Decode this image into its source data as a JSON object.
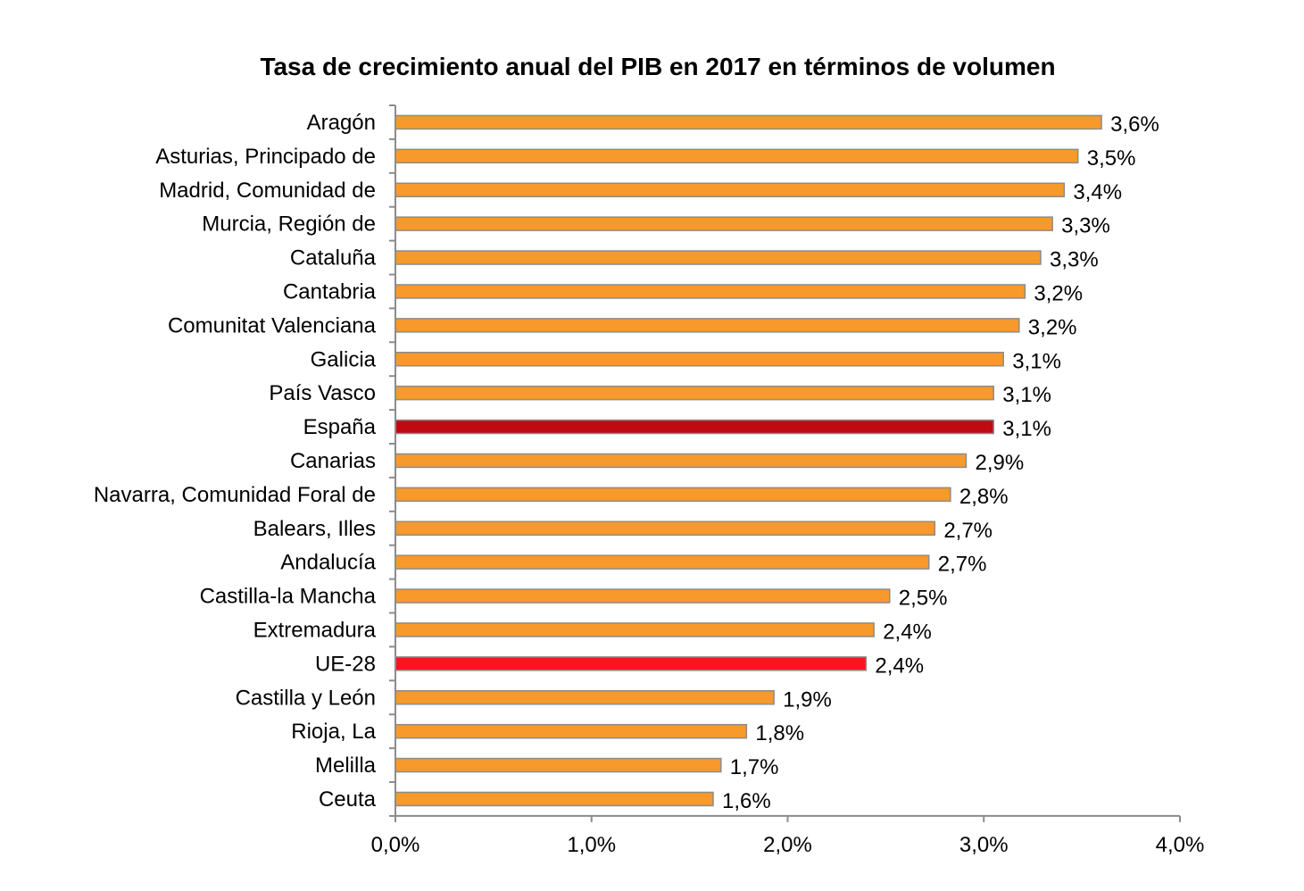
{
  "chart_data": {
    "type": "bar",
    "orientation": "horizontal",
    "title": "Tasa de crecimiento anual del PIB en 2017 en términos de volumen",
    "xlabel": "",
    "ylabel": "",
    "xlim": [
      0,
      4
    ],
    "x_ticks": [
      "0,0%",
      "1,0%",
      "2,0%",
      "3,0%",
      "4,0%"
    ],
    "grid": false,
    "legend": "none",
    "colors": {
      "default": "#F7992B",
      "España": "#C00A12",
      "UE-28": "#FF1420",
      "border": "#8C8C8C"
    },
    "categories": [
      "Aragón",
      "Asturias, Principado de",
      "Madrid, Comunidad de",
      "Murcia, Región de",
      "Cataluña",
      "Cantabria",
      "Comunitat Valenciana",
      "Galicia",
      "País Vasco",
      "España",
      "Canarias",
      "Navarra, Comunidad Foral de",
      "Balears, Illes",
      "Andalucía",
      "Castilla-la Mancha",
      "Extremadura",
      "UE-28",
      "Castilla y León",
      "Rioja, La",
      "Melilla",
      "Ceuta"
    ],
    "values": [
      3.6,
      3.48,
      3.41,
      3.35,
      3.29,
      3.21,
      3.18,
      3.1,
      3.05,
      3.05,
      2.91,
      2.83,
      2.75,
      2.72,
      2.52,
      2.44,
      2.4,
      1.93,
      1.79,
      1.66,
      1.62
    ],
    "data_labels": [
      "3,6%",
      "3,5%",
      "3,4%",
      "3,3%",
      "3,3%",
      "3,2%",
      "3,2%",
      "3,1%",
      "3,1%",
      "3,1%",
      "2,9%",
      "2,8%",
      "2,7%",
      "2,7%",
      "2,5%",
      "2,4%",
      "2,4%",
      "1,9%",
      "1,8%",
      "1,7%",
      "1,6%"
    ]
  }
}
